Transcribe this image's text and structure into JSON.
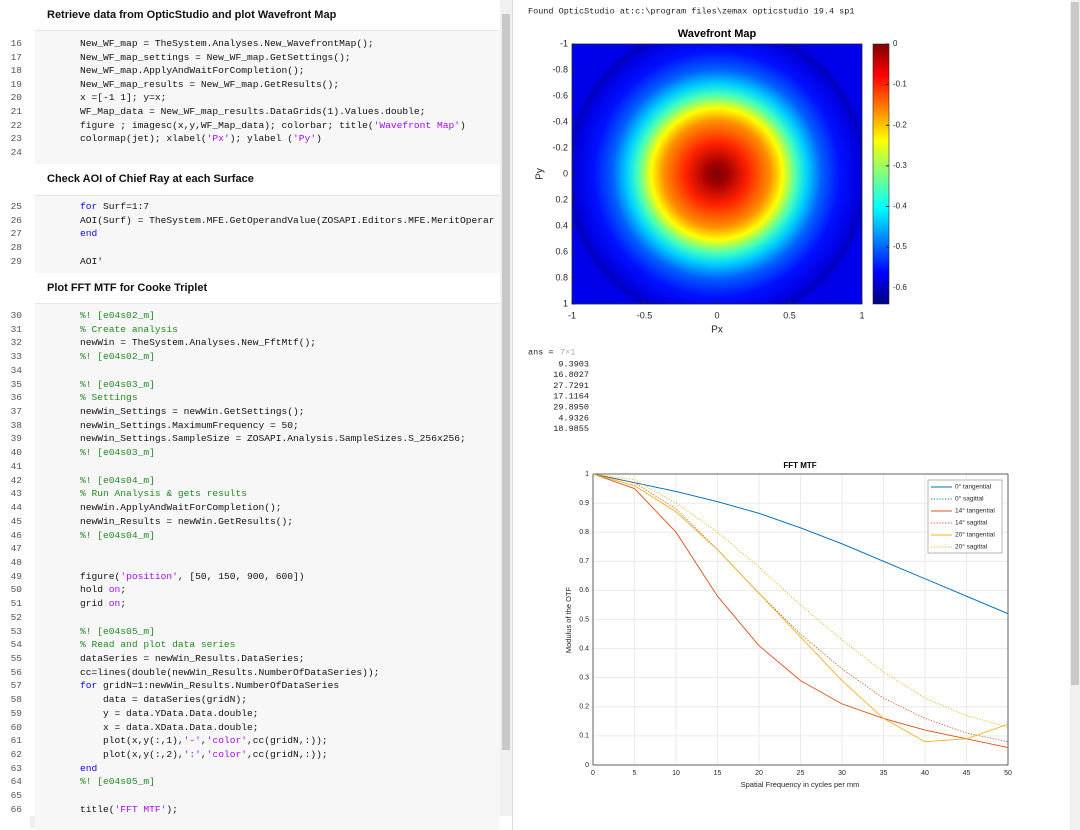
{
  "editor": {
    "sections": [
      {
        "heading": "Retrieve data from OpticStudio and plot Wavefront Map",
        "lines": [
          {
            "n": 16,
            "code": "New_WF_map = TheSystem.Analyses.New_WavefrontMap();"
          },
          {
            "n": 17,
            "code": "New_WF_map_settings = New_WF_map.GetSettings();"
          },
          {
            "n": 18,
            "code": "New_WF_map.ApplyAndWaitForCompletion();"
          },
          {
            "n": 19,
            "code": "New_WF_map_results = New_WF_map.GetResults();"
          },
          {
            "n": 20,
            "code": "x =[-1 1]; y=x;"
          },
          {
            "n": 21,
            "code": "WF_Map_data = New_WF_map_results.DataGrids(1).Values.double;"
          },
          {
            "n": 22,
            "code": [
              "figure ; imagesc(x,y,WF_Map_data); colorbar; title(",
              {
                "str": "'Wavefront Map'"
              },
              ")"
            ]
          },
          {
            "n": 23,
            "code": [
              "colormap(jet); xlabel(",
              {
                "str": "'Px'"
              },
              "); ylabel (",
              {
                "str": "'Py'"
              },
              ")"
            ]
          },
          {
            "n": 24
          }
        ]
      },
      {
        "heading": "Check AOI of Chief Ray at each Surface",
        "lines": [
          {
            "n": 25,
            "code": [
              {
                "kw": "for"
              },
              " Surf=1:7"
            ]
          },
          {
            "n": 26,
            "code": "AOI(Surf) = TheSystem.MFE.GetOperandValue(ZOSAPI.Editors.MFE.MeritOperar"
          },
          {
            "n": 27,
            "code": [
              {
                "kw": "end"
              }
            ]
          },
          {
            "n": 28
          },
          {
            "n": 29,
            "code": "AOI'"
          }
        ]
      },
      {
        "heading": "Plot FFT MTF for Cooke Triplet",
        "lines": [
          {
            "n": 30,
            "code": [
              {
                "cm": "%! [e04s02_m]"
              }
            ]
          },
          {
            "n": 31,
            "code": [
              {
                "cm": "% Create analysis"
              }
            ]
          },
          {
            "n": 32,
            "code": "newWin = TheSystem.Analyses.New_FftMtf();"
          },
          {
            "n": 33,
            "code": [
              {
                "cm": "%! [e04s02_m]"
              }
            ]
          },
          {
            "n": 34
          },
          {
            "n": 35,
            "code": [
              {
                "cm": "%! [e04s03_m]"
              }
            ]
          },
          {
            "n": 36,
            "code": [
              {
                "cm": "% Settings"
              }
            ]
          },
          {
            "n": 37,
            "code": "newWin_Settings = newWin.GetSettings();"
          },
          {
            "n": 38,
            "code": "newWin_Settings.MaximumFrequency = 50;"
          },
          {
            "n": 39,
            "code": "newWin_Settings.SampleSize = ZOSAPI.Analysis.SampleSizes.S_256x256;"
          },
          {
            "n": 40,
            "code": [
              {
                "cm": "%! [e04s03_m]"
              }
            ]
          },
          {
            "n": 41
          },
          {
            "n": 42,
            "code": [
              {
                "cm": "%! [e04s04_m]"
              }
            ]
          },
          {
            "n": 43,
            "code": [
              {
                "cm": "% Run Analysis & gets results"
              }
            ]
          },
          {
            "n": 44,
            "code": "newWin.ApplyAndWaitForCompletion();"
          },
          {
            "n": 45,
            "code": "newWin_Results = newWin.GetResults();"
          },
          {
            "n": 46,
            "code": [
              {
                "cm": "%! [e04s04_m]"
              }
            ]
          },
          {
            "n": 47
          },
          {
            "n": 48
          },
          {
            "n": 49,
            "code": [
              "figure(",
              {
                "str": "'position'"
              },
              ", [50, 150, 900, 600])"
            ]
          },
          {
            "n": 50,
            "code": [
              "hold ",
              {
                "str": "on"
              },
              ";"
            ]
          },
          {
            "n": 51,
            "code": [
              "grid ",
              {
                "str": "on"
              },
              ";"
            ]
          },
          {
            "n": 52
          },
          {
            "n": 53,
            "code": [
              {
                "cm": "%! [e04s05_m]"
              }
            ]
          },
          {
            "n": 54,
            "code": [
              {
                "cm": "% Read and plot data series"
              }
            ]
          },
          {
            "n": 55,
            "code": "dataSeries = newWin_Results.DataSeries;"
          },
          {
            "n": 56,
            "code": "cc=lines(double(newWin_Results.NumberOfDataSeries));"
          },
          {
            "n": 57,
            "code": [
              {
                "kw": "for"
              },
              " gridN=1:newWin_Results.NumberOfDataSeries"
            ]
          },
          {
            "n": 58,
            "code": "    data = dataSeries(gridN);"
          },
          {
            "n": 59,
            "code": "    y = data.YData.Data.double;"
          },
          {
            "n": 60,
            "code": "    x = data.XData.Data.double;"
          },
          {
            "n": 61,
            "code": [
              "    plot(x,y(:,1),",
              {
                "str": "'-'"
              },
              ",",
              {
                "str": "'color'"
              },
              ",cc(gridN,:));"
            ]
          },
          {
            "n": 62,
            "code": [
              "    plot(x,y(:,2),",
              {
                "str": "':'"
              },
              ",",
              {
                "str": "'color'"
              },
              ",cc(gridN,:));"
            ]
          },
          {
            "n": 63,
            "code": [
              {
                "kw": "end"
              }
            ]
          },
          {
            "n": 64,
            "code": [
              {
                "cm": "%! [e04s05_m]"
              }
            ]
          },
          {
            "n": 65
          },
          {
            "n": 66,
            "code": [
              "title(",
              {
                "str": "'FFT MTF'"
              },
              ");"
            ]
          }
        ]
      }
    ]
  },
  "output": {
    "found": "Found OpticStudio at:c:\\program files\\zemax opticstudio 19.4 sp1",
    "wavefront_map": {
      "type": "image",
      "title": "Wavefront Map",
      "xlabel": "Px",
      "ylabel": "Py",
      "xlim": [
        -1,
        1
      ],
      "ylim": [
        -1,
        1
      ],
      "xticks": [
        -1,
        -0.5,
        0,
        0.5,
        1
      ],
      "yticks": [
        -1,
        -0.8,
        -0.6,
        -0.4,
        -0.2,
        0,
        0.2,
        0.4,
        0.6,
        0.8,
        1
      ],
      "clim": [
        -0.64,
        0
      ],
      "cticks": [
        0,
        -0.1,
        -0.2,
        -0.3,
        -0.4,
        -0.5,
        -0.6
      ]
    },
    "ans": {
      "label": "ans = ",
      "size": "7×1",
      "values": [
        "9.3903",
        "16.8027",
        "27.7291",
        "17.1164",
        "29.8950",
        "4.9326",
        "18.9855"
      ]
    },
    "mtf_plot": {
      "type": "line",
      "title": "FFT MTF",
      "xlabel": "Spatial Frequency in cycles per mm",
      "ylabel": "Modulus of the OTF",
      "xlim": [
        0,
        50
      ],
      "ylim": [
        0,
        1
      ],
      "xticks": [
        0,
        5,
        10,
        15,
        20,
        25,
        30,
        35,
        40,
        45,
        50
      ],
      "yticks": [
        0,
        0.1,
        0.2,
        0.3,
        0.4,
        0.5,
        0.6,
        0.7,
        0.8,
        0.9,
        1
      ],
      "grid": true,
      "x": [
        0,
        5,
        10,
        15,
        20,
        25,
        30,
        35,
        40,
        45,
        50
      ],
      "series": [
        {
          "name": "0° tangential",
          "color": "#0072bd",
          "style": "solid",
          "values": [
            1,
            0.97,
            0.94,
            0.905,
            0.865,
            0.815,
            0.76,
            0.7,
            0.64,
            0.58,
            0.52
          ]
        },
        {
          "name": "0° sagittal",
          "color": "#0072bd",
          "style": "dotted",
          "values": [
            1,
            0.97,
            0.94,
            0.905,
            0.865,
            0.815,
            0.76,
            0.7,
            0.64,
            0.58,
            0.52
          ]
        },
        {
          "name": "14° tangential",
          "color": "#d95319",
          "style": "solid",
          "values": [
            1,
            0.95,
            0.8,
            0.58,
            0.41,
            0.29,
            0.21,
            0.16,
            0.12,
            0.09,
            0.06
          ]
        },
        {
          "name": "14° sagittal",
          "color": "#d95319",
          "style": "dotted",
          "values": [
            1,
            0.97,
            0.88,
            0.74,
            0.59,
            0.45,
            0.33,
            0.23,
            0.16,
            0.11,
            0.08
          ]
        },
        {
          "name": "20° tangential",
          "color": "#edb120",
          "style": "solid",
          "values": [
            1,
            0.96,
            0.87,
            0.74,
            0.59,
            0.44,
            0.29,
            0.16,
            0.08,
            0.09,
            0.14
          ]
        },
        {
          "name": "20° sagittal",
          "color": "#edb120",
          "style": "dotted",
          "values": [
            1,
            0.98,
            0.9,
            0.8,
            0.68,
            0.55,
            0.43,
            0.32,
            0.23,
            0.17,
            0.13
          ]
        }
      ]
    }
  }
}
